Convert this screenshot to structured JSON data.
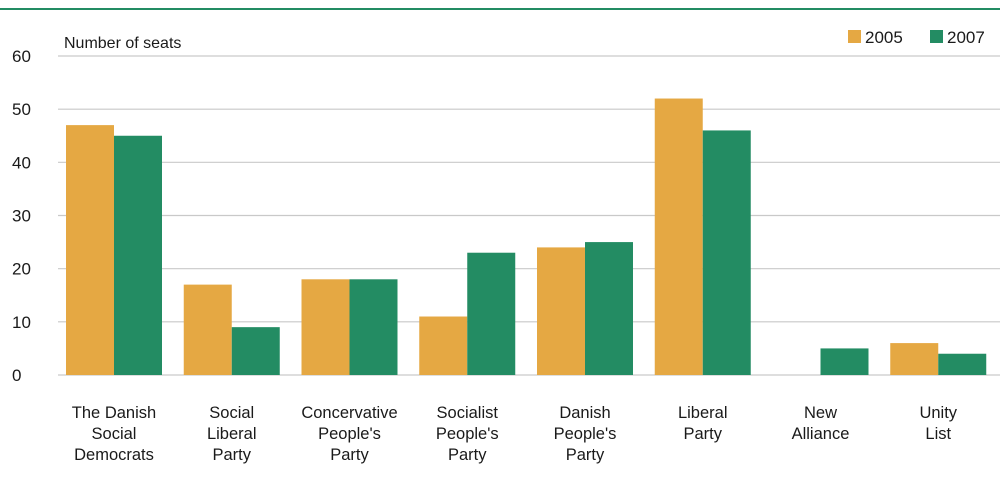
{
  "colors": {
    "series_2005": "#e5a843",
    "series_2007": "#238c63",
    "grid": "#c9c9c9",
    "top_rule": "#238c63"
  },
  "chart_data": {
    "type": "bar",
    "ylabel": "Number of seats",
    "ylim": [
      0,
      60
    ],
    "yticks": [
      0,
      10,
      20,
      30,
      40,
      50,
      60
    ],
    "grid": true,
    "legend_position": "top-right",
    "categories": [
      [
        "The Danish",
        "Social",
        "Democrats"
      ],
      [
        "Social",
        "Liberal",
        "Party"
      ],
      [
        "Concervative",
        "People's",
        "Party"
      ],
      [
        "Socialist",
        "People's",
        "Party"
      ],
      [
        "Danish",
        "People's",
        "Party"
      ],
      [
        "Liberal",
        "Party"
      ],
      [
        "New",
        "Alliance"
      ],
      [
        "Unity",
        "List"
      ]
    ],
    "series": [
      {
        "name": "2005",
        "values": [
          47,
          17,
          18,
          11,
          24,
          52,
          0,
          6
        ]
      },
      {
        "name": "2007",
        "values": [
          45,
          9,
          18,
          23,
          25,
          46,
          5,
          4
        ]
      }
    ]
  }
}
